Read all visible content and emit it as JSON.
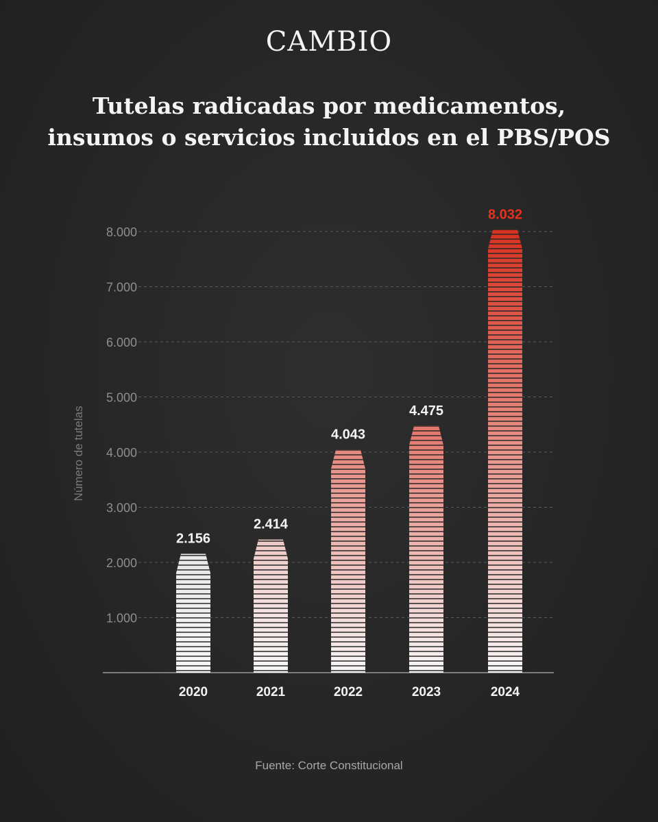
{
  "brand": "CAMBIO",
  "title_lines": [
    "Tutelas radicadas por medicamentos,",
    "insumos o servicios incluidos en el PBS/POS"
  ],
  "source": "Fuente: Corte Constitucional",
  "colors": {
    "background": "#262626",
    "text": "#f4f4f4",
    "axis_text": "#8e8e8e",
    "highlight": "#e8321e",
    "bar_light": "#f4f4f4",
    "bar_red": "#d8301f"
  },
  "chart_data": {
    "type": "bar",
    "title": "Tutelas radicadas por medicamentos, insumos o servicios incluidos en el PBS/POS",
    "xlabel": "",
    "ylabel": "Número de tutelas",
    "categories": [
      "2020",
      "2021",
      "2022",
      "2023",
      "2024"
    ],
    "values": [
      2156,
      2414,
      4043,
      4475,
      8032
    ],
    "value_labels": [
      "2.156",
      "2.414",
      "4.043",
      "4.475",
      "8.032"
    ],
    "yticks": [
      1000,
      2000,
      3000,
      4000,
      5000,
      6000,
      7000,
      8000
    ],
    "ytick_labels": [
      "1.000",
      "2.000",
      "3.000",
      "4.000",
      "5.000",
      "6.000",
      "7.000",
      "8.000"
    ],
    "ylim": [
      0,
      8000
    ],
    "grid": true,
    "highlight_index": 4
  }
}
